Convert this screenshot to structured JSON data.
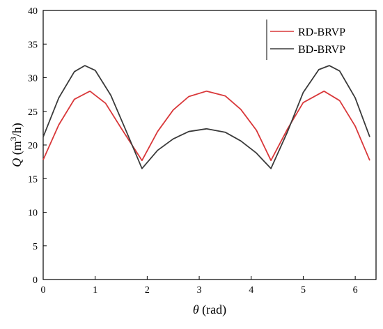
{
  "chart_data": {
    "type": "line",
    "xlabel": "θ (rad)",
    "ylabel": "Q (m³/h)",
    "xlabel_parts": {
      "symbol": "θ",
      "unit": " (rad)"
    },
    "ylabel_parts": {
      "symbol": "Q",
      "unit_before": " (m",
      "unit_sup": "3",
      "unit_after": "/h)"
    },
    "xlim": [
      0,
      6.4
    ],
    "ylim": [
      0,
      40
    ],
    "x_ticks": [
      0,
      1,
      2,
      3,
      4,
      5,
      6
    ],
    "y_ticks": [
      0,
      5,
      10,
      15,
      20,
      25,
      30,
      35,
      40
    ],
    "grid": false,
    "legend_position": "top-right",
    "series": [
      {
        "name": "RD-BRVP",
        "color": "#d9383a",
        "x": [
          0,
          0.3,
          0.6,
          0.9,
          1.2,
          1.5,
          1.9,
          2.2,
          2.5,
          2.8,
          3.14,
          3.5,
          3.8,
          4.1,
          4.38,
          4.7,
          5.0,
          5.4,
          5.7,
          6.0,
          6.28
        ],
        "y": [
          17.8,
          23.0,
          26.8,
          28.0,
          26.2,
          22.5,
          17.7,
          22.0,
          25.2,
          27.2,
          28.0,
          27.3,
          25.3,
          22.2,
          17.7,
          22.4,
          26.3,
          28.0,
          26.6,
          22.8,
          17.7
        ]
      },
      {
        "name": "BD-BRVP",
        "color": "#3a3a3a",
        "x": [
          0,
          0.3,
          0.6,
          0.8,
          1.0,
          1.3,
          1.6,
          1.9,
          2.2,
          2.5,
          2.8,
          3.14,
          3.5,
          3.8,
          4.1,
          4.38,
          4.7,
          5.0,
          5.3,
          5.5,
          5.7,
          6.0,
          6.28
        ],
        "y": [
          21.2,
          27.0,
          30.9,
          31.8,
          31.1,
          27.4,
          22.0,
          16.5,
          19.2,
          20.9,
          22.0,
          22.4,
          21.9,
          20.6,
          18.8,
          16.5,
          22.0,
          27.8,
          31.2,
          31.8,
          31.0,
          27.0,
          21.2
        ]
      }
    ]
  }
}
